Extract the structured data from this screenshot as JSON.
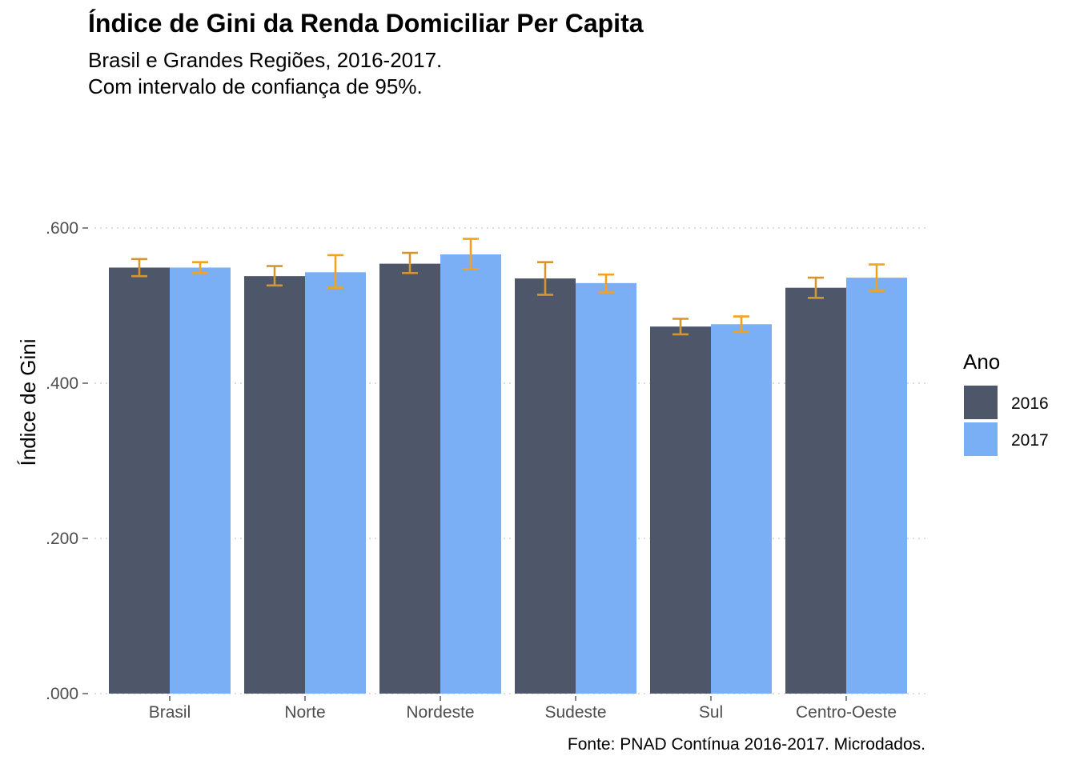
{
  "chart_data": {
    "type": "bar",
    "title": "Índice de Gini da Renda Domiciliar Per Capita",
    "subtitle_lines": [
      "Brasil e Grandes Regiões, 2016-2017.",
      "Com intervalo de confiança de 95%."
    ],
    "xlabel": "",
    "ylabel": "Índice de Gini",
    "ylim": [
      0,
      0.6
    ],
    "yticks": [
      0,
      0.2,
      0.4,
      0.6
    ],
    "ytick_labels": [
      ".000",
      ".200",
      ".400",
      ".600"
    ],
    "grid": "horizontal-dotted",
    "categories": [
      "Brasil",
      "Norte",
      "Nordeste",
      "Sudeste",
      "Sul",
      "Centro-Oeste"
    ],
    "series": [
      {
        "name": "2016",
        "color": "#4e5769",
        "values": [
          0.549,
          0.538,
          0.554,
          0.535,
          0.473,
          0.523
        ],
        "ci_low": [
          0.538,
          0.526,
          0.542,
          0.514,
          0.463,
          0.51
        ],
        "ci_high": [
          0.56,
          0.551,
          0.568,
          0.556,
          0.483,
          0.536
        ],
        "error_bar_color": "#d4972f"
      },
      {
        "name": "2017",
        "color": "#7aaff5",
        "values": [
          0.549,
          0.543,
          0.566,
          0.529,
          0.476,
          0.536
        ],
        "ci_low": [
          0.542,
          0.523,
          0.547,
          0.517,
          0.466,
          0.519
        ],
        "ci_high": [
          0.556,
          0.565,
          0.586,
          0.54,
          0.486,
          0.553
        ],
        "error_bar_color": "#f4a21d"
      }
    ],
    "legend": {
      "title": "Ano",
      "position": "right",
      "entries": [
        "2016",
        "2017"
      ]
    },
    "caption": "Fonte: PNAD Contínua 2016-2017. Microdados."
  }
}
